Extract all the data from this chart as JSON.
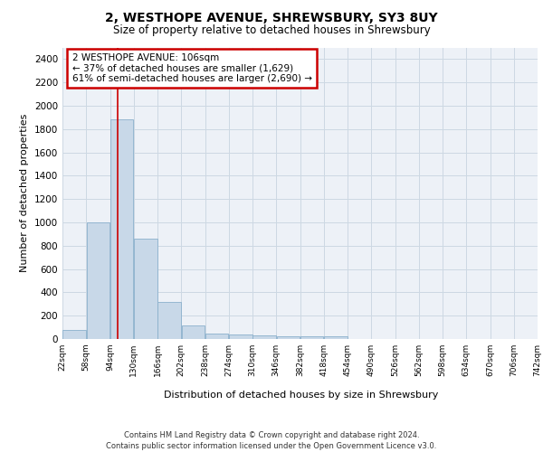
{
  "title_line1": "2, WESTHOPE AVENUE, SHREWSBURY, SY3 8UY",
  "title_line2": "Size of property relative to detached houses in Shrewsbury",
  "xlabel": "Distribution of detached houses by size in Shrewsbury",
  "ylabel": "Number of detached properties",
  "footnote": "Contains HM Land Registry data © Crown copyright and database right 2024.\nContains public sector information licensed under the Open Government Licence v3.0.",
  "annotation_title": "2 WESTHOPE AVENUE: 106sqm",
  "annotation_line2": "← 37% of detached houses are smaller (1,629)",
  "annotation_line3": "61% of semi-detached houses are larger (2,690) →",
  "property_line_x": 106,
  "bins": [
    22,
    58,
    94,
    130,
    166,
    202,
    238,
    274,
    310,
    346,
    382,
    418,
    454,
    490,
    526,
    562,
    598,
    634,
    670,
    706,
    742
  ],
  "bar_heights": [
    80,
    1000,
    1880,
    860,
    315,
    115,
    50,
    40,
    30,
    25,
    20,
    20,
    0,
    0,
    0,
    0,
    0,
    0,
    0,
    0
  ],
  "bar_color": "#c8d8e8",
  "bar_edge_color": "#8ab0cc",
  "grid_color": "#cdd8e3",
  "line_color": "#cc0000",
  "annotation_box_color": "#cc0000",
  "ylim": [
    0,
    2500
  ],
  "yticks": [
    0,
    200,
    400,
    600,
    800,
    1000,
    1200,
    1400,
    1600,
    1800,
    2000,
    2200,
    2400
  ],
  "bg_color": "#edf1f7"
}
